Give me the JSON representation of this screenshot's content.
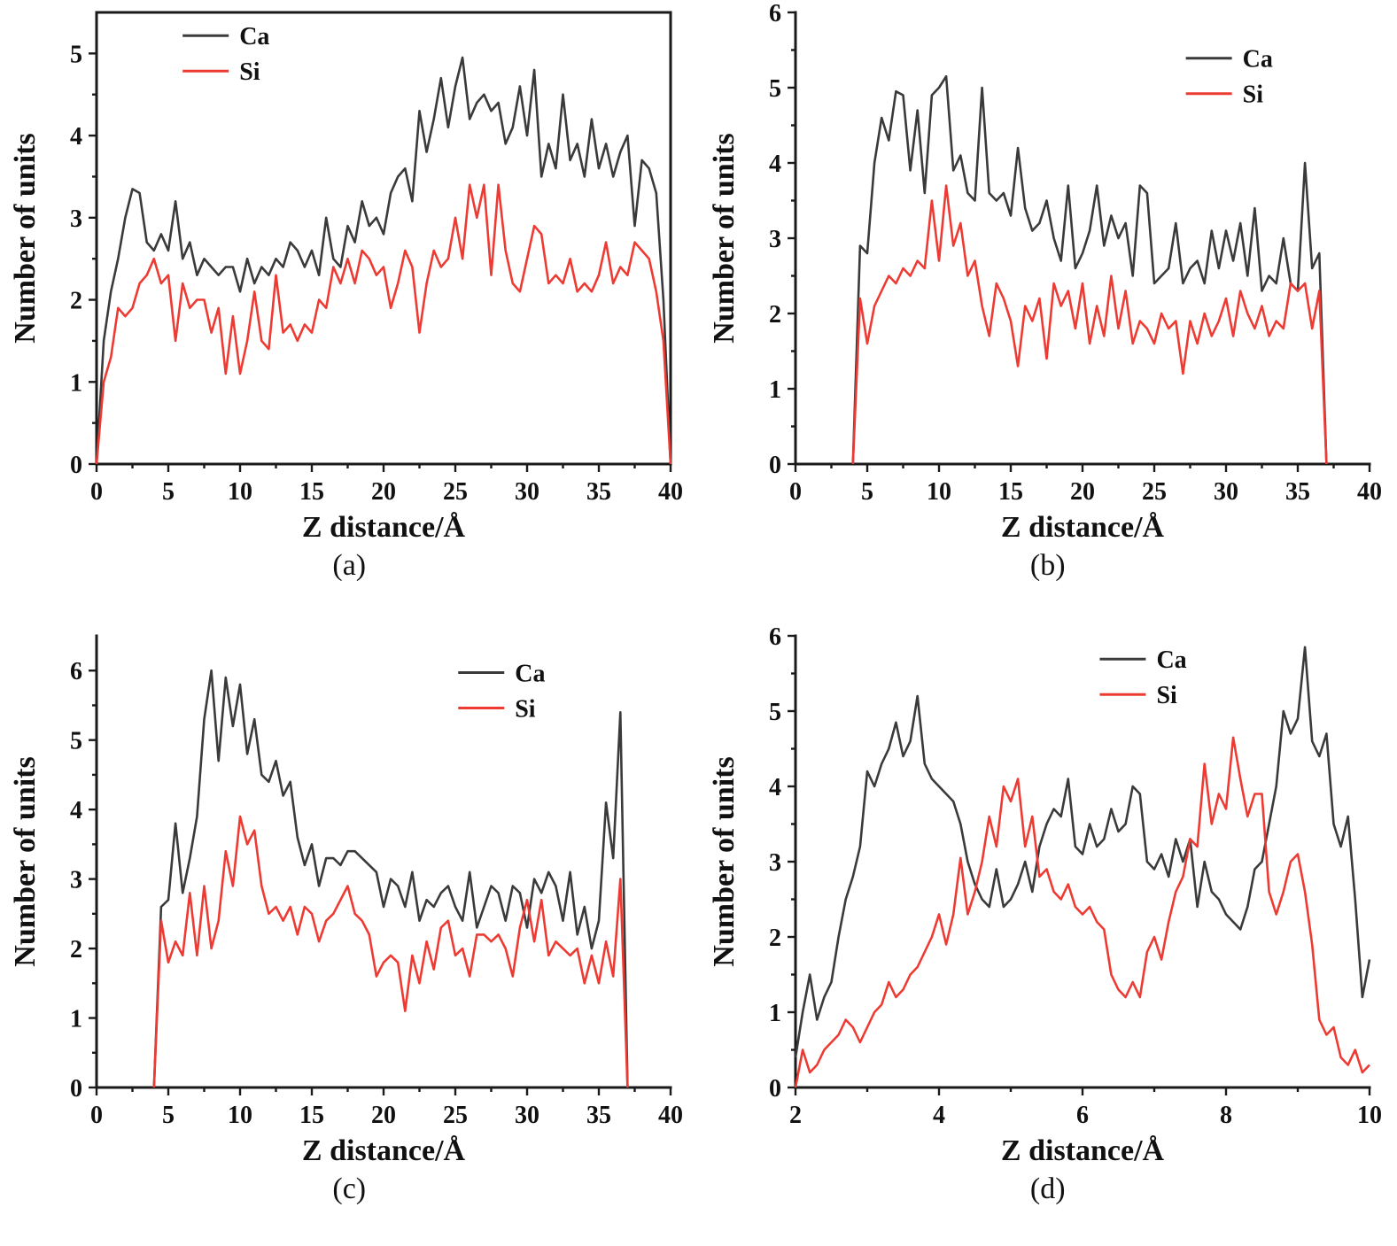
{
  "figure": {
    "ylabel": "Number of units",
    "xlabel": "Z distance/Å",
    "colors": {
      "ca": "#3a3a3a",
      "si": "#ed3b33"
    }
  },
  "chart_data": [
    {
      "type": "line",
      "panel": "a",
      "caption": "(a)",
      "xlabel": "Z distance/Å",
      "ylabel": "Number of units",
      "xlim": [
        0,
        40
      ],
      "ylim": [
        0,
        5.5
      ],
      "xticks": [
        0,
        5,
        10,
        15,
        20,
        25,
        30,
        35,
        40
      ],
      "yticks": [
        0,
        1,
        2,
        3,
        4,
        5
      ],
      "frame": true,
      "legend": {
        "x": 0.15,
        "y": 0.02,
        "position": "top-left"
      },
      "x_start": 0,
      "x_step": 0.5,
      "series": [
        {
          "name": "Ca",
          "color": "#3a3a3a",
          "values": [
            0,
            1.5,
            2.1,
            2.5,
            3.0,
            3.35,
            3.3,
            2.7,
            2.6,
            2.8,
            2.6,
            3.2,
            2.5,
            2.7,
            2.3,
            2.5,
            2.4,
            2.3,
            2.4,
            2.4,
            2.1,
            2.5,
            2.2,
            2.4,
            2.3,
            2.5,
            2.4,
            2.7,
            2.6,
            2.4,
            2.6,
            2.3,
            3.0,
            2.5,
            2.4,
            2.9,
            2.7,
            3.2,
            2.9,
            3.0,
            2.8,
            3.3,
            3.5,
            3.6,
            3.2,
            4.3,
            3.8,
            4.2,
            4.7,
            4.1,
            4.6,
            4.95,
            4.2,
            4.4,
            4.5,
            4.3,
            4.4,
            3.9,
            4.1,
            4.6,
            4.0,
            4.8,
            3.5,
            3.9,
            3.6,
            4.5,
            3.7,
            3.9,
            3.5,
            4.2,
            3.6,
            3.9,
            3.5,
            3.8,
            4.0,
            2.9,
            3.7,
            3.6,
            3.3,
            2.0,
            0
          ]
        },
        {
          "name": "Si",
          "color": "#ed3b33",
          "values": [
            0,
            1.0,
            1.3,
            1.9,
            1.8,
            1.9,
            2.2,
            2.3,
            2.5,
            2.2,
            2.3,
            1.5,
            2.2,
            1.9,
            2.0,
            2.0,
            1.6,
            1.9,
            1.1,
            1.8,
            1.1,
            1.5,
            2.1,
            1.5,
            1.4,
            2.3,
            1.6,
            1.7,
            1.5,
            1.7,
            1.6,
            2.0,
            1.9,
            2.4,
            2.2,
            2.5,
            2.2,
            2.6,
            2.5,
            2.3,
            2.4,
            1.9,
            2.2,
            2.6,
            2.4,
            1.6,
            2.2,
            2.6,
            2.4,
            2.5,
            3.0,
            2.5,
            3.4,
            3.0,
            3.4,
            2.3,
            3.4,
            2.6,
            2.2,
            2.1,
            2.5,
            2.9,
            2.8,
            2.2,
            2.3,
            2.2,
            2.5,
            2.1,
            2.2,
            2.1,
            2.3,
            2.7,
            2.2,
            2.4,
            2.3,
            2.7,
            2.6,
            2.5,
            2.1,
            1.5,
            0
          ]
        }
      ]
    },
    {
      "type": "line",
      "panel": "b",
      "caption": "(b)",
      "xlabel": "Z distance/Å",
      "ylabel": "Number of units",
      "xlim": [
        0,
        40
      ],
      "ylim": [
        0,
        6
      ],
      "xticks": [
        0,
        5,
        10,
        15,
        20,
        25,
        30,
        35,
        40
      ],
      "yticks": [
        0,
        1,
        2,
        3,
        4,
        5,
        6
      ],
      "frame": false,
      "legend": {
        "x": 0.68,
        "y": 0.07,
        "position": "top-right"
      },
      "x_start": 4,
      "x_step": 0.5,
      "series": [
        {
          "name": "Ca",
          "color": "#3a3a3a",
          "values": [
            0,
            2.9,
            2.8,
            4.0,
            4.6,
            4.3,
            4.95,
            4.9,
            3.9,
            4.7,
            3.6,
            4.9,
            5.0,
            5.15,
            3.9,
            4.1,
            3.6,
            3.5,
            5.0,
            3.6,
            3.5,
            3.6,
            3.3,
            4.2,
            3.4,
            3.1,
            3.2,
            3.5,
            3.0,
            2.7,
            3.7,
            2.6,
            2.8,
            3.1,
            3.7,
            2.9,
            3.3,
            3.0,
            3.2,
            2.5,
            3.7,
            3.6,
            2.4,
            2.5,
            2.6,
            3.2,
            2.4,
            2.6,
            2.7,
            2.4,
            3.1,
            2.6,
            3.1,
            2.7,
            3.2,
            2.5,
            3.4,
            2.3,
            2.5,
            2.4,
            3.0,
            2.4,
            2.3,
            4.0,
            2.6,
            2.8,
            0
          ]
        },
        {
          "name": "Si",
          "color": "#ed3b33",
          "values": [
            0,
            2.2,
            1.6,
            2.1,
            2.3,
            2.5,
            2.4,
            2.6,
            2.5,
            2.7,
            2.6,
            3.5,
            2.7,
            3.7,
            2.9,
            3.2,
            2.5,
            2.7,
            2.1,
            1.7,
            2.4,
            2.2,
            1.9,
            1.3,
            2.1,
            1.9,
            2.2,
            1.4,
            2.4,
            2.1,
            2.3,
            1.8,
            2.4,
            1.6,
            2.1,
            1.7,
            2.5,
            1.8,
            2.3,
            1.6,
            1.9,
            1.8,
            1.6,
            2.0,
            1.8,
            1.9,
            1.2,
            1.9,
            1.6,
            2.0,
            1.7,
            1.9,
            2.2,
            1.7,
            2.3,
            2.0,
            1.8,
            2.1,
            1.7,
            1.9,
            1.8,
            2.4,
            2.3,
            2.4,
            1.8,
            2.3,
            0
          ]
        }
      ]
    },
    {
      "type": "line",
      "panel": "c",
      "caption": "(c)",
      "xlabel": "Z distance/Å",
      "ylabel": "Number of units",
      "xlim": [
        0,
        40
      ],
      "ylim": [
        0,
        6.5
      ],
      "xticks": [
        0,
        5,
        10,
        15,
        20,
        25,
        30,
        35,
        40
      ],
      "yticks": [
        0,
        1,
        2,
        3,
        4,
        5,
        6
      ],
      "frame": false,
      "legend": {
        "x": 0.63,
        "y": 0.05,
        "position": "top-right"
      },
      "x_start": 4,
      "x_step": 0.5,
      "series": [
        {
          "name": "Ca",
          "color": "#3a3a3a",
          "values": [
            0,
            2.6,
            2.7,
            3.8,
            2.8,
            3.3,
            3.9,
            5.3,
            6.0,
            4.7,
            5.9,
            5.2,
            5.8,
            4.8,
            5.3,
            4.5,
            4.4,
            4.7,
            4.2,
            4.4,
            3.6,
            3.2,
            3.5,
            2.9,
            3.3,
            3.3,
            3.2,
            3.4,
            3.4,
            3.3,
            3.2,
            3.1,
            2.6,
            3.0,
            2.9,
            2.6,
            3.1,
            2.4,
            2.7,
            2.6,
            2.8,
            2.9,
            2.6,
            2.4,
            3.1,
            2.3,
            2.6,
            2.9,
            2.8,
            2.4,
            2.9,
            2.8,
            2.3,
            3.0,
            2.8,
            3.1,
            2.9,
            2.4,
            3.1,
            2.2,
            2.6,
            2.0,
            2.4,
            4.1,
            3.3,
            5.4,
            0
          ]
        },
        {
          "name": "Si",
          "color": "#ed3b33",
          "values": [
            0,
            2.4,
            1.8,
            2.1,
            1.9,
            2.8,
            1.9,
            2.9,
            2.0,
            2.4,
            3.4,
            2.9,
            3.9,
            3.5,
            3.7,
            2.9,
            2.5,
            2.6,
            2.4,
            2.6,
            2.2,
            2.6,
            2.5,
            2.1,
            2.4,
            2.5,
            2.7,
            2.9,
            2.5,
            2.4,
            2.2,
            1.6,
            1.8,
            1.9,
            1.8,
            1.1,
            1.9,
            1.5,
            2.1,
            1.7,
            2.3,
            2.4,
            1.9,
            2.0,
            1.6,
            2.2,
            2.2,
            2.1,
            2.2,
            2.0,
            1.6,
            2.3,
            2.7,
            2.1,
            2.7,
            1.9,
            2.1,
            2.0,
            1.9,
            2.0,
            1.5,
            1.9,
            1.5,
            2.1,
            1.6,
            3.0,
            0
          ]
        }
      ]
    },
    {
      "type": "line",
      "panel": "d",
      "caption": "(d)",
      "xlabel": "Z distance/Å",
      "ylabel": "Number of units",
      "xlim": [
        2,
        10
      ],
      "ylim": [
        0,
        6
      ],
      "xticks": [
        2,
        4,
        6,
        8,
        10
      ],
      "yticks": [
        0,
        1,
        2,
        3,
        4,
        5,
        6
      ],
      "frame": false,
      "legend": {
        "x": 0.53,
        "y": 0.02,
        "position": "top-right"
      },
      "x_start": 2,
      "x_step": 0.1,
      "series": [
        {
          "name": "Ca",
          "color": "#3a3a3a",
          "values": [
            0.4,
            1.0,
            1.5,
            0.9,
            1.2,
            1.4,
            2.0,
            2.5,
            2.8,
            3.2,
            4.2,
            4.0,
            4.3,
            4.5,
            4.85,
            4.4,
            4.6,
            5.2,
            4.3,
            4.1,
            4.0,
            3.9,
            3.8,
            3.5,
            3.0,
            2.7,
            2.5,
            2.4,
            2.9,
            2.4,
            2.5,
            2.7,
            3.0,
            2.6,
            3.2,
            3.5,
            3.7,
            3.6,
            4.1,
            3.2,
            3.1,
            3.5,
            3.2,
            3.3,
            3.7,
            3.4,
            3.5,
            4.0,
            3.9,
            3.0,
            2.9,
            3.1,
            2.8,
            3.3,
            3.0,
            3.3,
            2.4,
            3.0,
            2.6,
            2.5,
            2.3,
            2.2,
            2.1,
            2.4,
            2.9,
            3.0,
            3.5,
            4.0,
            5.0,
            4.7,
            4.9,
            5.85,
            4.6,
            4.4,
            4.7,
            3.5,
            3.2,
            3.6,
            2.5,
            1.2,
            1.7
          ]
        },
        {
          "name": "Si",
          "color": "#ed3b33",
          "values": [
            0,
            0.5,
            0.2,
            0.3,
            0.5,
            0.6,
            0.7,
            0.9,
            0.8,
            0.6,
            0.8,
            1.0,
            1.1,
            1.4,
            1.2,
            1.3,
            1.5,
            1.6,
            1.8,
            2.0,
            2.3,
            1.9,
            2.3,
            3.05,
            2.3,
            2.6,
            3.0,
            3.6,
            3.2,
            4.0,
            3.8,
            4.1,
            3.2,
            3.6,
            2.8,
            2.9,
            2.6,
            2.5,
            2.7,
            2.4,
            2.3,
            2.4,
            2.2,
            2.1,
            1.5,
            1.3,
            1.2,
            1.4,
            1.2,
            1.8,
            2.0,
            1.7,
            2.2,
            2.6,
            2.8,
            3.3,
            3.2,
            4.3,
            3.5,
            3.9,
            3.7,
            4.65,
            4.1,
            3.6,
            3.9,
            3.9,
            2.6,
            2.3,
            2.6,
            3.0,
            3.1,
            2.6,
            1.9,
            0.9,
            0.7,
            0.8,
            0.4,
            0.3,
            0.5,
            0.2,
            0.3
          ]
        }
      ]
    }
  ]
}
